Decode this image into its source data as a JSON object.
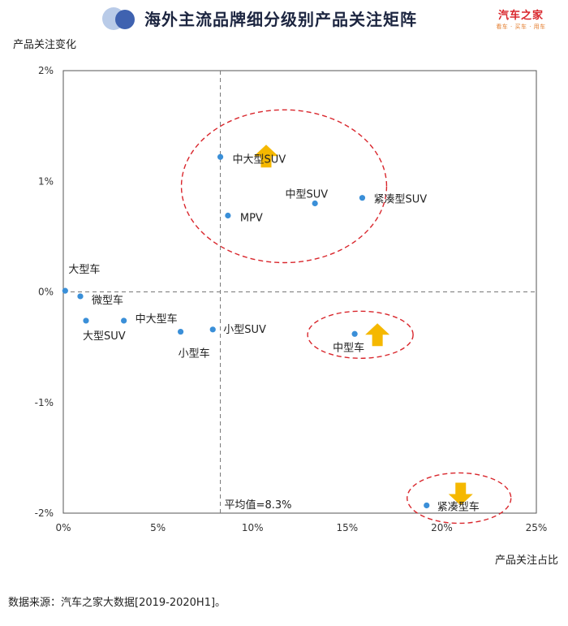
{
  "header": {
    "title": "海外主流品牌细分级别产品关注矩阵",
    "logo_name": "汽车之家",
    "logo_tagline": "看车 · 买车 · 用车"
  },
  "chart_data": {
    "type": "scatter",
    "title": "海外主流品牌细分级别产品关注矩阵",
    "xlabel": "产品关注占比",
    "ylabel": "产品关注变化",
    "xlim": [
      0,
      25
    ],
    "ylim": [
      -2,
      2
    ],
    "x_unit": "%",
    "y_unit": "%",
    "xticks": [
      "0%",
      "5%",
      "10%",
      "15%",
      "20%",
      "25%"
    ],
    "yticks": [
      "2%",
      "1%",
      "0%",
      "-1%",
      "-2%"
    ],
    "avg_line": {
      "x": 8.3,
      "label": "平均值=8.3%"
    },
    "points": [
      {
        "name": "大型车",
        "x": 0.1,
        "y": 0.01
      },
      {
        "name": "微型车",
        "x": 0.9,
        "y": -0.04
      },
      {
        "name": "大型SUV",
        "x": 1.2,
        "y": -0.26
      },
      {
        "name": "中大型车",
        "x": 3.2,
        "y": -0.26
      },
      {
        "name": "小型车",
        "x": 6.2,
        "y": -0.36
      },
      {
        "name": "小型SUV",
        "x": 7.9,
        "y": -0.34
      },
      {
        "name": "中大型SUV",
        "x": 8.3,
        "y": 1.22
      },
      {
        "name": "MPV",
        "x": 8.7,
        "y": 0.69
      },
      {
        "name": "中型SUV",
        "x": 13.3,
        "y": 0.8
      },
      {
        "name": "紧凑型SUV",
        "x": 15.8,
        "y": 0.85
      },
      {
        "name": "中型车",
        "x": 15.4,
        "y": -0.38
      },
      {
        "name": "紧凑型车",
        "x": 19.2,
        "y": -1.93
      }
    ],
    "highlight_groups": [
      {
        "members": [
          "中大型SUV",
          "MPV",
          "中型SUV",
          "紧凑型SUV"
        ],
        "arrow": "up"
      },
      {
        "members": [
          "中型车"
        ],
        "arrow": "up"
      },
      {
        "members": [
          "紧凑型车"
        ],
        "arrow": "down"
      }
    ],
    "colors": {
      "point": "#3a8fd8",
      "ellipse": "#d9262c",
      "arrow": "#f5b800",
      "grid_line": "#777777"
    },
    "grid": false,
    "legend": "none"
  },
  "footer": {
    "source": "数据来源：汽车之家大数据[2019-2020H1]。"
  }
}
